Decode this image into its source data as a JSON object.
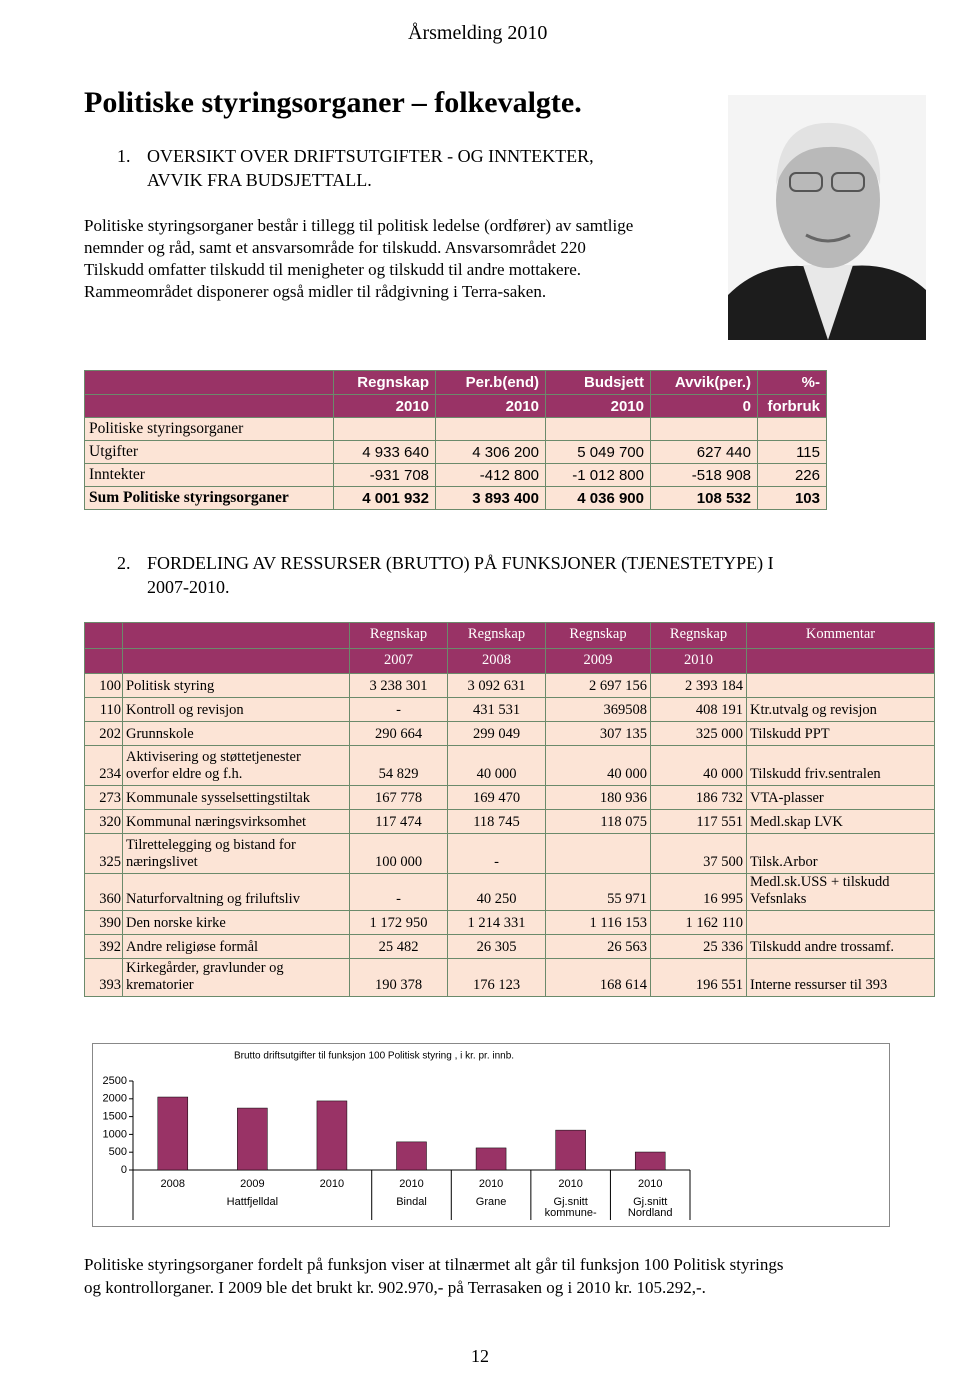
{
  "header": "Årsmelding 2010",
  "title": "Politiske styringsorganer – folkevalgte.",
  "section1": {
    "number": "1.",
    "lines": [
      "OVERSIKT OVER DRIFTSUTGIFTER - OG INNTEKTER,",
      "AVVIK FRA BUDSJETTALL."
    ]
  },
  "intro": [
    "Politiske styringsorganer består i tillegg til politisk ledelse (ordfører) av samtlige",
    "nemnder og råd, samt et ansvarsområde for tilskudd. Ansvarsområdet 220",
    "Tilskudd omfatter tilskudd til menigheter og tilskudd til andre mottakere.",
    "Rammeområdet disponerer også midler til rådgivning i Terra-saken."
  ],
  "table1": {
    "columns": [
      "Regnskap",
      "Per.b(end)",
      "Budsjett",
      "Avvik(per.)",
      "%-"
    ],
    "columns2": [
      "2010",
      "2010",
      "2010",
      "0",
      "forbruk"
    ],
    "section": "Politiske styringsorganer",
    "rows": [
      {
        "label": "Utgifter",
        "values": [
          "4 933 640",
          "4 306 200",
          "5 049 700",
          "627 440",
          "115"
        ]
      },
      {
        "label": "Inntekter",
        "values": [
          "-931 708",
          "-412 800",
          "-1 012 800",
          "-518 908",
          "226"
        ]
      },
      {
        "label": "Sum Politiske styringsorganer",
        "values": [
          "4 001 932",
          "3 893 400",
          "4 036 900",
          "108 532",
          "103"
        ]
      }
    ]
  },
  "section2": {
    "number": "2.",
    "lines": [
      "FORDELING AV RESSURSER (BRUTTO) PÅ FUNKSJONER (TJENESTETYPE) I",
      "2007-2010."
    ]
  },
  "table2": {
    "columns": [
      "Regnskap",
      "Regnskap",
      "Regnskap",
      "Regnskap",
      "Kommentar"
    ],
    "years": [
      "2007",
      "2008",
      "2009",
      "2010"
    ],
    "rows": [
      {
        "code": "100",
        "name": "Politisk styring",
        "values": [
          "3 238 301",
          "3 092 631",
          "2 697 156",
          "2 393 184"
        ]
      },
      {
        "code": "110",
        "name": "Kontroll og revisjon",
        "values": [
          "-",
          "431 531",
          "369508",
          "408 191"
        ],
        "comment": "Ktr.utvalg og revisjon"
      },
      {
        "code": "202",
        "name": "Grunnskole",
        "values": [
          "290 664",
          "299 049",
          "307 135",
          "325 000"
        ],
        "comment": "Tilskudd PPT"
      },
      {
        "code": "234",
        "name": "Aktivisering og støttetjenester overfor eldre og f.h.",
        "values": [
          "54 829",
          "40 000",
          "40 000",
          "40 000"
        ],
        "comment": "Tilskudd friv.sentralen"
      },
      {
        "code": "273",
        "name": "Kommunale sysselsettingstiltak",
        "values": [
          "167 778",
          "169 470",
          "180 936",
          "186 732"
        ],
        "comment": "VTA-plasser"
      },
      {
        "code": "320",
        "name": "Kommunal næringsvirksomhet",
        "values": [
          "117 474",
          "118 745",
          "118 075",
          "117 551"
        ],
        "comment": "Medl.skap LVK"
      },
      {
        "code": "325",
        "name": "Tilrettelegging og bistand for næringslivet",
        "values": [
          "100 000",
          "-",
          null,
          "37 500"
        ],
        "comment": "Tilsk.Arbor"
      },
      {
        "code": "360",
        "name": "Naturforvaltning og friluftsliv",
        "values": [
          "-",
          "40 250",
          "55 971",
          "16 995"
        ],
        "comment": "Medl.sk.USS + tilskudd Vefsnlaks"
      },
      {
        "code": "390",
        "name": "Den norske kirke",
        "values": [
          "1 172 950",
          "1 214 331",
          "1 116 153",
          "1 162 110"
        ]
      },
      {
        "code": "392",
        "name": "Andre religiøse formål",
        "values": [
          "25 482",
          "26 305",
          "26 563",
          "25 336"
        ],
        "comment": "Tilskudd andre trossamf."
      },
      {
        "code": "393",
        "name": "Kirkegårder, gravlunder og krematorier",
        "values": [
          "190 378",
          "176 123",
          "168 614",
          "196 551"
        ],
        "comment": "Interne ressurser til 393"
      }
    ]
  },
  "chart_data": {
    "type": "bar",
    "title": "Brutto driftsutgifter til funksjon 100 Politisk styring , i kr. pr. innb.",
    "categories": [
      "2008",
      "2009",
      "2010",
      "2010",
      "2010",
      "2010",
      "2010"
    ],
    "category_groups": [
      null,
      "Hattfjelldal",
      null,
      "Bindal",
      "Grane",
      "Gj.snitt kommune-",
      "Gj.snitt Nordland"
    ],
    "values": [
      2050,
      1740,
      1940,
      790,
      620,
      1120,
      505
    ],
    "color": "#993366",
    "ylim": [
      0,
      2500
    ],
    "yticks": [
      0,
      500,
      1000,
      1500,
      2000,
      2500
    ]
  },
  "conclusion": [
    "Politiske styringsorganer fordelt på funksjon viser at tilnærmet alt går til funksjon 100 Politisk styrings",
    "og kontrollorganer. I 2009 ble det brukt kr. 902.970,- på Terrasaken og i 2010 kr. 105.292,-."
  ],
  "page_number": "12"
}
